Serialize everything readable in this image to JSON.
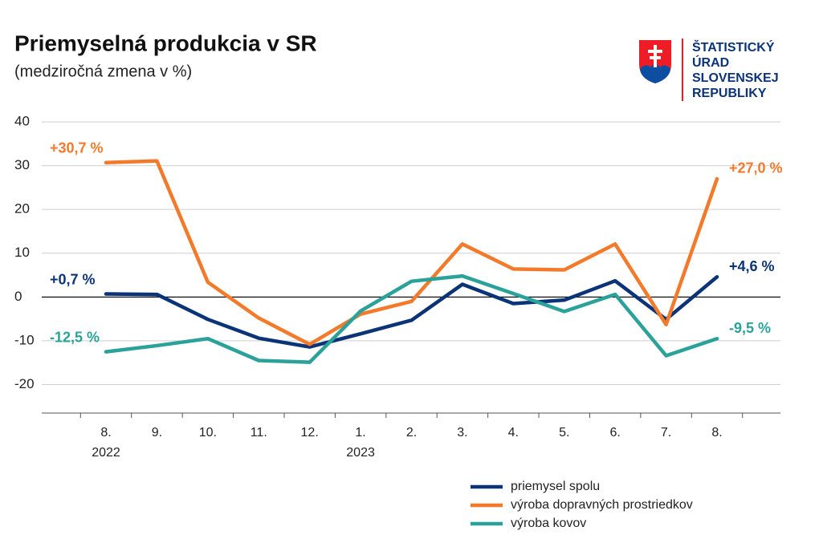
{
  "chart_data": {
    "type": "line",
    "title": "Priemyselná produkcia v SR",
    "subtitle": "(medziročná zmena v %)",
    "categories": [
      "8.",
      "9.",
      "10.",
      "11.",
      "12.",
      "1.",
      "2.",
      "3.",
      "4.",
      "5.",
      "6.",
      "7.",
      "8."
    ],
    "years": [
      "2022",
      null,
      null,
      null,
      null,
      "2023",
      null,
      null,
      null,
      null,
      null,
      null,
      null
    ],
    "series": [
      {
        "name": "priemysel spolu",
        "color": "#0b3478",
        "values": [
          0.7,
          0.6,
          -5.1,
          -9.4,
          -11.4,
          -8.4,
          -5.3,
          2.9,
          -1.5,
          -0.7,
          3.7,
          -5.1,
          4.6
        ],
        "value_labels": [
          "+0,7 %",
          null,
          null,
          null,
          null,
          null,
          null,
          null,
          null,
          null,
          null,
          null,
          "+4,6 %"
        ]
      },
      {
        "name": "výroba dopravných prostriedkov",
        "color": "#f47a2b",
        "values": [
          30.7,
          31.1,
          3.4,
          -4.8,
          -10.8,
          -3.9,
          -1.0,
          12.1,
          6.4,
          6.2,
          12.1,
          -6.3,
          27.0
        ],
        "value_labels": [
          "+30,7 %",
          null,
          null,
          null,
          null,
          null,
          null,
          null,
          null,
          null,
          null,
          null,
          "+27,0 %"
        ]
      },
      {
        "name": "výroba kovov",
        "color": "#2aa199",
        "values": [
          -12.5,
          -11.1,
          -9.5,
          -14.5,
          -14.9,
          -3.2,
          3.6,
          4.8,
          0.8,
          -3.3,
          0.6,
          -13.4,
          -9.5
        ],
        "value_labels": [
          "-12,5 %",
          null,
          null,
          null,
          null,
          null,
          null,
          null,
          null,
          null,
          null,
          null,
          "-9,5 %"
        ]
      }
    ],
    "ylim": [
      -26.5,
      40
    ],
    "yticks": [
      -20,
      -10,
      0,
      10,
      20,
      30,
      40
    ],
    "grid": true
  },
  "logo": {
    "lines": [
      "ŠTATISTICKÝ",
      "ÚRAD",
      "SLOVENSKEJ",
      "REPUBLIKY"
    ]
  }
}
